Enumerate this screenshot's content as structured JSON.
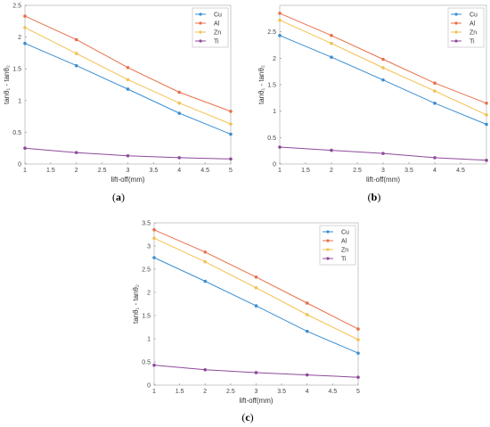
{
  "colors": {
    "Cu": "#3b8ed0",
    "Al": "#e8704a",
    "Zn": "#f3c150",
    "Ti": "#8e4a9a",
    "axis": "#bdbdbd"
  },
  "chart_data": [
    {
      "type": "line",
      "panel_label": "a",
      "xlabel": "lift-off(mm)",
      "ylabel": "tanθ₁ - tanθ₂",
      "xlim": [
        1,
        5
      ],
      "ylim": [
        0,
        2.5
      ],
      "xticks": [
        1,
        1.5,
        2,
        2.5,
        3,
        3.5,
        4,
        4.5,
        5
      ],
      "yticks": [
        0,
        0.5,
        1,
        1.5,
        2,
        2.5
      ],
      "legend": "top-right",
      "grid": false,
      "x": [
        1,
        2,
        3,
        4,
        5
      ],
      "series": [
        {
          "name": "Cu",
          "values": [
            1.9,
            1.55,
            1.18,
            0.8,
            0.47
          ]
        },
        {
          "name": "Al",
          "values": [
            2.33,
            1.96,
            1.52,
            1.13,
            0.83
          ]
        },
        {
          "name": "Zn",
          "values": [
            2.15,
            1.74,
            1.33,
            0.96,
            0.63
          ]
        },
        {
          "name": "Ti",
          "values": [
            0.25,
            0.18,
            0.13,
            0.1,
            0.08
          ]
        }
      ]
    },
    {
      "type": "line",
      "panel_label": "b",
      "xlabel": "lift-off(mm)",
      "ylabel": "tanθ₁ - tanθ₂",
      "xlim": [
        1,
        5
      ],
      "ylim": [
        0,
        3
      ],
      "xticks": [
        1,
        1.5,
        2,
        2.5,
        3,
        3.5,
        4,
        4.5
      ],
      "yticks": [
        0,
        0.5,
        1,
        1.5,
        2,
        2.5
      ],
      "legend": "top-right",
      "grid": false,
      "x": [
        1,
        2,
        3,
        4,
        5
      ],
      "series": [
        {
          "name": "Cu",
          "values": [
            2.43,
            2.02,
            1.59,
            1.15,
            0.75
          ]
        },
        {
          "name": "Al",
          "values": [
            2.85,
            2.43,
            1.98,
            1.53,
            1.15
          ]
        },
        {
          "name": "Zn",
          "values": [
            2.72,
            2.28,
            1.82,
            1.38,
            0.93
          ]
        },
        {
          "name": "Ti",
          "values": [
            0.32,
            0.26,
            0.2,
            0.12,
            0.07
          ]
        }
      ]
    },
    {
      "type": "line",
      "panel_label": "c",
      "xlabel": "lift-off(mm)",
      "ylabel": "tanθ₁ - tanθ₂",
      "xlim": [
        1,
        5
      ],
      "ylim": [
        0,
        3.5
      ],
      "xticks": [
        1,
        1.5,
        2,
        2.5,
        3,
        3.5,
        4,
        4.5,
        5
      ],
      "yticks": [
        0,
        0.5,
        1,
        1.5,
        2,
        2.5,
        3,
        3.5
      ],
      "legend": "top-right",
      "grid": false,
      "x": [
        1,
        2,
        3,
        4,
        5
      ],
      "series": [
        {
          "name": "Cu",
          "values": [
            2.75,
            2.24,
            1.71,
            1.16,
            0.69
          ]
        },
        {
          "name": "Al",
          "values": [
            3.35,
            2.87,
            2.33,
            1.77,
            1.21
          ]
        },
        {
          "name": "Zn",
          "values": [
            3.17,
            2.66,
            2.1,
            1.52,
            0.98
          ]
        },
        {
          "name": "Ti",
          "values": [
            0.43,
            0.33,
            0.27,
            0.22,
            0.17
          ]
        }
      ]
    }
  ]
}
